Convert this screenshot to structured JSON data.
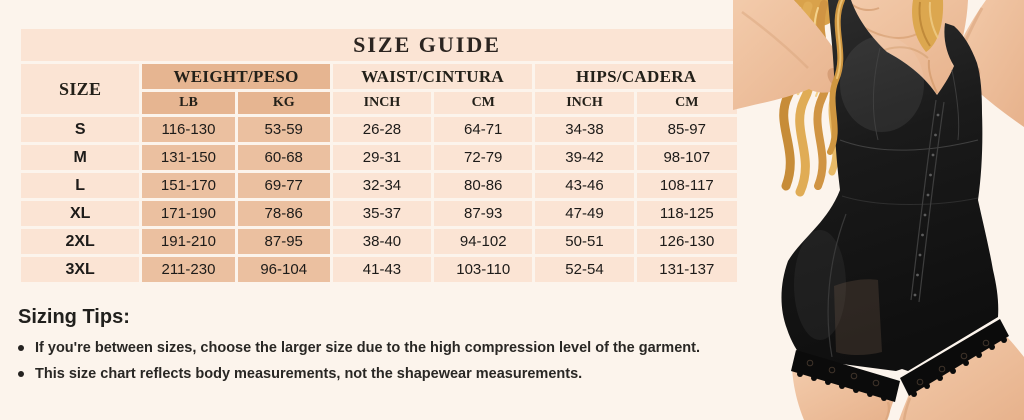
{
  "title": "SIZE GUIDE",
  "chart_data": {
    "type": "table",
    "title": "SIZE GUIDE",
    "column_groups": [
      {
        "label": "SIZE",
        "sub": []
      },
      {
        "label": "WEIGHT/PESO",
        "sub": [
          "LB",
          "KG"
        ]
      },
      {
        "label": "WAIST/CINTURA",
        "sub": [
          "INCH",
          "CM"
        ]
      },
      {
        "label": "HIPS/CADERA",
        "sub": [
          "INCH",
          "CM"
        ]
      }
    ],
    "rows": [
      [
        "S",
        "116-130",
        "53-59",
        "26-28",
        "64-71",
        "34-38",
        "85-97"
      ],
      [
        "M",
        "131-150",
        "60-68",
        "29-31",
        "72-79",
        "39-42",
        "98-107"
      ],
      [
        "L",
        "151-170",
        "69-77",
        "32-34",
        "80-86",
        "43-46",
        "108-117"
      ],
      [
        "XL",
        "171-190",
        "78-86",
        "35-37",
        "87-93",
        "47-49",
        "118-125"
      ],
      [
        "2XL",
        "191-210",
        "87-95",
        "38-40",
        "94-102",
        "50-51",
        "126-130"
      ],
      [
        "3XL",
        "211-230",
        "96-104",
        "41-43",
        "103-110",
        "52-54",
        "131-137"
      ]
    ]
  },
  "tips": {
    "heading": "Sizing Tips:",
    "items": [
      "If you're between sizes, choose the larger size due to the high compression level of the garment.",
      "This size chart reflects body measurements, not the shapewear measurements."
    ]
  },
  "colors": {
    "background": "#fcf4ec",
    "cell_pink": "#fbe4d4",
    "cell_peach_header": "#e6b591",
    "cell_peach_body": "#ebc0a0",
    "text": "#1e1c1a",
    "garment_black": "#161616",
    "skin": "#eec2a2",
    "hair_gold": "#d8a14f"
  }
}
